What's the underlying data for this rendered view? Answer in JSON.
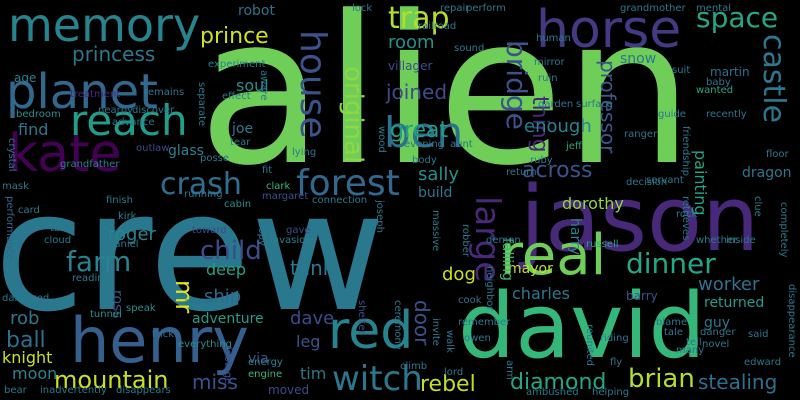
{
  "palette": {
    "background": "#000000"
  },
  "words": [
    {
      "text": "alien",
      "color": "#6ece58"
    },
    {
      "text": "crew",
      "color": "#2a788e"
    },
    {
      "text": "david",
      "color": "#35b779"
    },
    {
      "text": "jason",
      "color": "#482878"
    },
    {
      "text": "henry",
      "color": "#355f8d"
    },
    {
      "text": "memory",
      "color": "#25848e"
    },
    {
      "text": "planet",
      "color": "#31688e"
    },
    {
      "text": "kate",
      "color": "#440154"
    },
    {
      "text": "horse",
      "color": "#443a83"
    },
    {
      "text": "real",
      "color": "#6ece58"
    },
    {
      "text": "red",
      "color": "#25848e"
    },
    {
      "text": "reach",
      "color": "#1f9e89"
    },
    {
      "text": "house",
      "color": "#3b528b"
    },
    {
      "text": "ben",
      "color": "#2d708e"
    },
    {
      "text": "forest",
      "color": "#31688e"
    },
    {
      "text": "witch",
      "color": "#2a788e"
    },
    {
      "text": "space",
      "color": "#22a884"
    },
    {
      "text": "trap",
      "color": "#b4de2c"
    },
    {
      "text": "castle",
      "color": "#2a788e"
    },
    {
      "text": "bridge",
      "color": "#3b528b"
    },
    {
      "text": "large",
      "color": "#482878"
    },
    {
      "text": "crash",
      "color": "#2d708e"
    },
    {
      "text": "dinner",
      "color": "#22a884"
    },
    {
      "text": "original",
      "color": "#90d743"
    },
    {
      "text": "mountain",
      "color": "#c8e020"
    },
    {
      "text": "rebel",
      "color": "#bddf26"
    },
    {
      "text": "diamond",
      "color": "#22a884"
    },
    {
      "text": "brian",
      "color": "#b4de2c"
    },
    {
      "text": "stealing",
      "color": "#2d708e"
    },
    {
      "text": "farm",
      "color": "#25848e"
    },
    {
      "text": "child",
      "color": "#3e4a89"
    },
    {
      "text": "professor",
      "color": "#38588c"
    },
    {
      "text": "prince",
      "color": "#cde11d"
    },
    {
      "text": "princess",
      "color": "#2a788e"
    },
    {
      "text": "great",
      "color": "#1f9e89"
    },
    {
      "text": "joined",
      "color": "#3e4a89"
    },
    {
      "text": "room",
      "color": "#21918c"
    },
    {
      "text": "thing",
      "color": "#482878"
    },
    {
      "text": "across",
      "color": "#3b528b"
    },
    {
      "text": "enough",
      "color": "#25848e"
    },
    {
      "text": "sally",
      "color": "#21918c"
    },
    {
      "text": "dorothy",
      "color": "#90d743"
    },
    {
      "text": "harry",
      "color": "#26828e"
    },
    {
      "text": "charles",
      "color": "#2a788e"
    },
    {
      "text": "worker",
      "color": "#2c728e"
    },
    {
      "text": "returned",
      "color": "#1f9e89"
    },
    {
      "text": "ship",
      "color": "#31688e"
    },
    {
      "text": "tank",
      "color": "#2a788e"
    },
    {
      "text": "mr",
      "color": "#dde318"
    },
    {
      "text": "dave",
      "color": "#3e4a89"
    },
    {
      "text": "leg",
      "color": "#3b528b"
    },
    {
      "text": "tim",
      "color": "#2a788e"
    },
    {
      "text": "miss",
      "color": "#3b528b"
    },
    {
      "text": "moon",
      "color": "#25848e"
    },
    {
      "text": "ball",
      "color": "#2d708e"
    },
    {
      "text": "rob",
      "color": "#2a788e"
    },
    {
      "text": "knight",
      "color": "#c8e020"
    },
    {
      "text": "door",
      "color": "#3b528b"
    },
    {
      "text": "dog",
      "color": "#c8e020"
    },
    {
      "text": "mayor",
      "color": "#c2df23"
    },
    {
      "text": "roger",
      "color": "#25848e"
    },
    {
      "text": "adventure",
      "color": "#1f9e89"
    },
    {
      "text": "deep",
      "color": "#20a486"
    },
    {
      "text": "soul",
      "color": "#21918c"
    },
    {
      "text": "glass",
      "color": "#25848e"
    },
    {
      "text": "find",
      "color": "#2a788e"
    },
    {
      "text": "robot",
      "color": "#2c728e"
    },
    {
      "text": "age",
      "color": "#26828e"
    },
    {
      "text": "joe",
      "color": "#2a788e"
    },
    {
      "text": "villager",
      "color": "#3e4a89"
    },
    {
      "text": "snow",
      "color": "#2a788e"
    },
    {
      "text": "martin",
      "color": "#2d708e"
    },
    {
      "text": "painting",
      "color": "#20a486"
    },
    {
      "text": "dragon",
      "color": "#2a788e"
    },
    {
      "text": "falling",
      "color": "#35b779"
    },
    {
      "text": "build",
      "color": "#2a788e"
    },
    {
      "text": "guy",
      "color": "#2a788e"
    },
    {
      "text": "ross",
      "color": "#3b528b"
    },
    {
      "text": "via",
      "color": "#3b528b"
    },
    {
      "text": "moved",
      "color": "#3e4a89"
    },
    {
      "text": "barry",
      "color": "#3b528b"
    },
    {
      "text": "wanted",
      "color": "#22a884"
    },
    {
      "text": "jeff",
      "color": "#22a884"
    },
    {
      "text": "russell",
      "color": "#22a884"
    },
    {
      "text": "performance",
      "color": "#31688e"
    },
    {
      "text": "grandfather",
      "color": "#26828e"
    },
    {
      "text": "outlaw",
      "color": "#3e4a89"
    },
    {
      "text": "treatment",
      "color": "#482878"
    },
    {
      "text": "experiment",
      "color": "#26828e"
    },
    {
      "text": "bedroom",
      "color": "#21918c"
    },
    {
      "text": "finish",
      "color": "#2a788e"
    },
    {
      "text": "kirk",
      "color": "#25848e"
    },
    {
      "text": "toward",
      "color": "#3e4a89"
    },
    {
      "text": "speak",
      "color": "#21918c"
    },
    {
      "text": "tunnel",
      "color": "#21918c"
    },
    {
      "text": "cabin",
      "color": "#21918c"
    },
    {
      "text": "clark",
      "color": "#35b779"
    },
    {
      "text": "margaret",
      "color": "#3b528b"
    },
    {
      "text": "gave",
      "color": "#3e4a89"
    },
    {
      "text": "invasion",
      "color": "#26828e"
    },
    {
      "text": "shelter",
      "color": "#3b528b"
    },
    {
      "text": "everything",
      "color": "#21918c"
    },
    {
      "text": "footage",
      "color": "#3e4a89"
    },
    {
      "text": "energy",
      "color": "#25848e"
    },
    {
      "text": "engine",
      "color": "#35b779"
    },
    {
      "text": "trick",
      "color": "#2d708e"
    },
    {
      "text": "ask",
      "color": "#2a788e"
    },
    {
      "text": "copy",
      "color": "#2a788e"
    },
    {
      "text": "fit",
      "color": "#2a788e"
    },
    {
      "text": "tear",
      "color": "#2a788e"
    },
    {
      "text": "evening",
      "color": "#2a788e"
    },
    {
      "text": "aunt",
      "color": "#2a788e"
    },
    {
      "text": "body",
      "color": "#2a788e"
    },
    {
      "text": "human",
      "color": "#2a788e"
    },
    {
      "text": "railroad",
      "color": "#2a788e"
    },
    {
      "text": "lock",
      "color": "#2a788e"
    },
    {
      "text": "perform",
      "color": "#2a788e"
    },
    {
      "text": "grandmother",
      "color": "#2a788e"
    },
    {
      "text": "mental",
      "color": "#2a788e"
    },
    {
      "text": "recently",
      "color": "#2a788e"
    },
    {
      "text": "baby",
      "color": "#2a788e"
    },
    {
      "text": "suit",
      "color": "#2a788e"
    },
    {
      "text": "guide",
      "color": "#2a788e"
    },
    {
      "text": "ranger",
      "color": "#2a788e"
    },
    {
      "text": "ruby",
      "color": "#2a788e"
    },
    {
      "text": "friendship",
      "color": "#2a788e"
    },
    {
      "text": "floor",
      "color": "#2a788e"
    },
    {
      "text": "servant",
      "color": "#2a788e"
    },
    {
      "text": "decision",
      "color": "#2a788e"
    },
    {
      "text": "return",
      "color": "#2a788e"
    },
    {
      "text": "retrieves",
      "color": "#2a788e"
    },
    {
      "text": "clue",
      "color": "#2a788e"
    },
    {
      "text": "inside",
      "color": "#2a788e"
    },
    {
      "text": "whether",
      "color": "#2a788e"
    },
    {
      "text": "completely",
      "color": "#2a788e"
    },
    {
      "text": "danger",
      "color": "#2a788e"
    },
    {
      "text": "blame",
      "color": "#2a788e"
    },
    {
      "text": "said",
      "color": "#2a788e"
    },
    {
      "text": "novel",
      "color": "#2a788e"
    },
    {
      "text": "disappearance",
      "color": "#2a788e"
    },
    {
      "text": "edward",
      "color": "#2a788e"
    },
    {
      "text": "many",
      "color": "#2a788e"
    },
    {
      "text": "riding",
      "color": "#2a788e"
    },
    {
      "text": "reunited",
      "color": "#2a788e"
    },
    {
      "text": "fly",
      "color": "#2a788e"
    },
    {
      "text": "helping",
      "color": "#2a788e"
    },
    {
      "text": "ambushed",
      "color": "#2a788e"
    },
    {
      "text": "tale",
      "color": "#2a788e"
    },
    {
      "text": "remember",
      "color": "#2a788e"
    },
    {
      "text": "owen",
      "color": "#2a788e"
    },
    {
      "text": "arm",
      "color": "#2a788e"
    },
    {
      "text": "lord",
      "color": "#2a788e"
    },
    {
      "text": "climb",
      "color": "#2a788e"
    },
    {
      "text": "cook",
      "color": "#2a788e"
    },
    {
      "text": "invite",
      "color": "#2a788e"
    },
    {
      "text": "neighbor",
      "color": "#2a788e"
    },
    {
      "text": "robber",
      "color": "#2a788e"
    },
    {
      "text": "massive",
      "color": "#2a788e"
    },
    {
      "text": "demon",
      "color": "#2a788e"
    },
    {
      "text": "joseph",
      "color": "#2a788e"
    },
    {
      "text": "connection",
      "color": "#2a788e"
    },
    {
      "text": "wood",
      "color": "#2a788e"
    },
    {
      "text": "ceremony",
      "color": "#2a788e"
    },
    {
      "text": "repair",
      "color": "#2a788e"
    },
    {
      "text": "ruin",
      "color": "#2a788e"
    },
    {
      "text": "sound",
      "color": "#2a788e"
    },
    {
      "text": "mirror",
      "color": "#2a788e"
    },
    {
      "text": "garden",
      "color": "#2a788e"
    },
    {
      "text": "surface",
      "color": "#2a788e"
    },
    {
      "text": "lying",
      "color": "#2a788e"
    },
    {
      "text": "posse",
      "color": "#2a788e"
    },
    {
      "text": "effect",
      "color": "#2a788e"
    },
    {
      "text": "separate",
      "color": "#2a788e"
    },
    {
      "text": "discover",
      "color": "#2a788e"
    },
    {
      "text": "advance",
      "color": "#2a788e"
    },
    {
      "text": "remains",
      "color": "#2a788e"
    },
    {
      "text": "nearby",
      "color": "#2a788e"
    },
    {
      "text": "aware",
      "color": "#2a788e"
    },
    {
      "text": "crystal",
      "color": "#2a788e"
    },
    {
      "text": "mask",
      "color": "#2a788e"
    },
    {
      "text": "card",
      "color": "#2a788e"
    },
    {
      "text": "table",
      "color": "#2a788e"
    },
    {
      "text": "cloud",
      "color": "#2a788e"
    },
    {
      "text": "daniel",
      "color": "#2a788e"
    },
    {
      "text": "reading",
      "color": "#2a788e"
    },
    {
      "text": "damaged",
      "color": "#2a788e"
    },
    {
      "text": "bear",
      "color": "#2a788e"
    },
    {
      "text": "inadvertently",
      "color": "#2a788e"
    },
    {
      "text": "disappears",
      "color": "#2a788e"
    },
    {
      "text": "running",
      "color": "#2a788e"
    },
    {
      "text": "rock",
      "color": "#2a788e"
    },
    {
      "text": "tell",
      "color": "#2a788e"
    },
    {
      "text": "walk",
      "color": "#2a788e"
    }
  ]
}
